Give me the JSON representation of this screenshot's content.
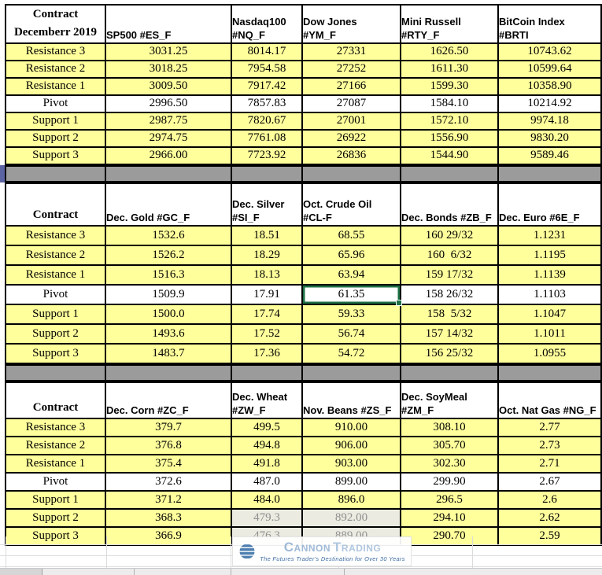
{
  "sheet_title": "Contract Decemberr 2019",
  "row_labels": [
    "Resistance 3",
    "Resistance 2",
    "Resistance 1",
    "Pivot",
    "Support 1",
    "Support 2",
    "Support 3"
  ],
  "tables": [
    {
      "name": "index-futures",
      "contract_label": "Contract\nDecemberr 2019",
      "columns": [
        "SP500 #ES_F",
        "Nasdaq100\n#NQ_F",
        "Dow Jones\n#YM_F",
        "Mini Russell\n#RTY_F",
        "BitCoin Index\n#BRTI"
      ],
      "rows": [
        [
          "3031.25",
          "8014.17",
          "27331",
          "1626.50",
          "10743.62"
        ],
        [
          "3018.25",
          "7954.58",
          "27252",
          "1611.30",
          "10599.64"
        ],
        [
          "3009.50",
          "7917.42",
          "27166",
          "1599.30",
          "10358.90"
        ],
        [
          "2996.50",
          "7857.83",
          "27087",
          "1584.10",
          "10214.92"
        ],
        [
          "2987.75",
          "7820.67",
          "27001",
          "1572.10",
          "9974.18"
        ],
        [
          "2974.75",
          "7761.08",
          "26922",
          "1556.90",
          "9830.20"
        ],
        [
          "2966.00",
          "7723.92",
          "26836",
          "1544.90",
          "9589.46"
        ]
      ]
    },
    {
      "name": "metals-energy-bonds-currency",
      "contract_label": "Contract",
      "columns": [
        "Dec. Gold #GC_F",
        "Dec. Silver\n#SI_F",
        "Oct. Crude Oil\n#CL-F",
        "Dec. Bonds  #ZB_F",
        "Dec. Euro #6E_F"
      ],
      "rows": [
        [
          "1532.6",
          "18.51",
          "68.55",
          "160 29/32",
          "1.1231"
        ],
        [
          "1526.2",
          "18.29",
          "65.96",
          "160  6/32",
          "1.1195"
        ],
        [
          "1516.3",
          "18.13",
          "63.94",
          "159 17/32",
          "1.1139"
        ],
        [
          "1509.9",
          "17.91",
          "61.35",
          "158 26/32",
          "1.1103"
        ],
        [
          "1500.0",
          "17.74",
          "59.33",
          "158  5/32",
          "1.1047"
        ],
        [
          "1493.6",
          "17.52",
          "56.74",
          "157 14/32",
          "1.1011"
        ],
        [
          "1483.7",
          "17.36",
          "54.72",
          "156 25/32",
          "1.0955"
        ]
      ]
    },
    {
      "name": "grains-natgas",
      "contract_label": "Contract",
      "columns": [
        "Dec.  Corn #ZC_F",
        "Dec.  Wheat\n#ZW_F",
        "Nov. Beans #ZS_F",
        "Dec.  SoyMeal\n#ZM_F",
        "Oct. Nat Gas #NG_F"
      ],
      "rows": [
        [
          "379.7",
          "499.5",
          "910.00",
          "308.10",
          "2.77"
        ],
        [
          "376.8",
          "494.8",
          "906.00",
          "305.70",
          "2.73"
        ],
        [
          "375.4",
          "491.8",
          "903.00",
          "302.30",
          "2.71"
        ],
        [
          "372.6",
          "487.0",
          "899.00",
          "299.90",
          "2.67"
        ],
        [
          "371.2",
          "484.0",
          "896.0",
          "296.5",
          "2.6"
        ],
        [
          "368.3",
          "479.3",
          "892.00",
          "294.10",
          "2.62"
        ],
        [
          "366.9",
          "476.3",
          "889.00",
          "290.70",
          "2.59"
        ]
      ]
    }
  ],
  "selected_cell": {
    "table": 1,
    "row": 3,
    "col": 2
  },
  "dimmed_cells": [
    {
      "table": 2,
      "row": 5,
      "col": 1
    },
    {
      "table": 2,
      "row": 5,
      "col": 2
    },
    {
      "table": 2,
      "row": 6,
      "col": 1
    },
    {
      "table": 2,
      "row": 6,
      "col": 2
    }
  ],
  "colors": {
    "cell_yellow": "#FFFF9C",
    "separator_gray": "#9B9B9B",
    "selection_green": "#1E7145",
    "left_accent_blue": "#5C63A2",
    "logo_brand_blue": "#9FB9D6",
    "logo_icon_blue": "#4E7FB0",
    "logo_tagline_blue": "#3F6EA6"
  },
  "logo": {
    "icon": "globe-stripes-icon",
    "brand_part1": "Cannon",
    "brand_part2": "Trading",
    "tagline": "The Futures Trader's Destination for Over 30 Years"
  }
}
